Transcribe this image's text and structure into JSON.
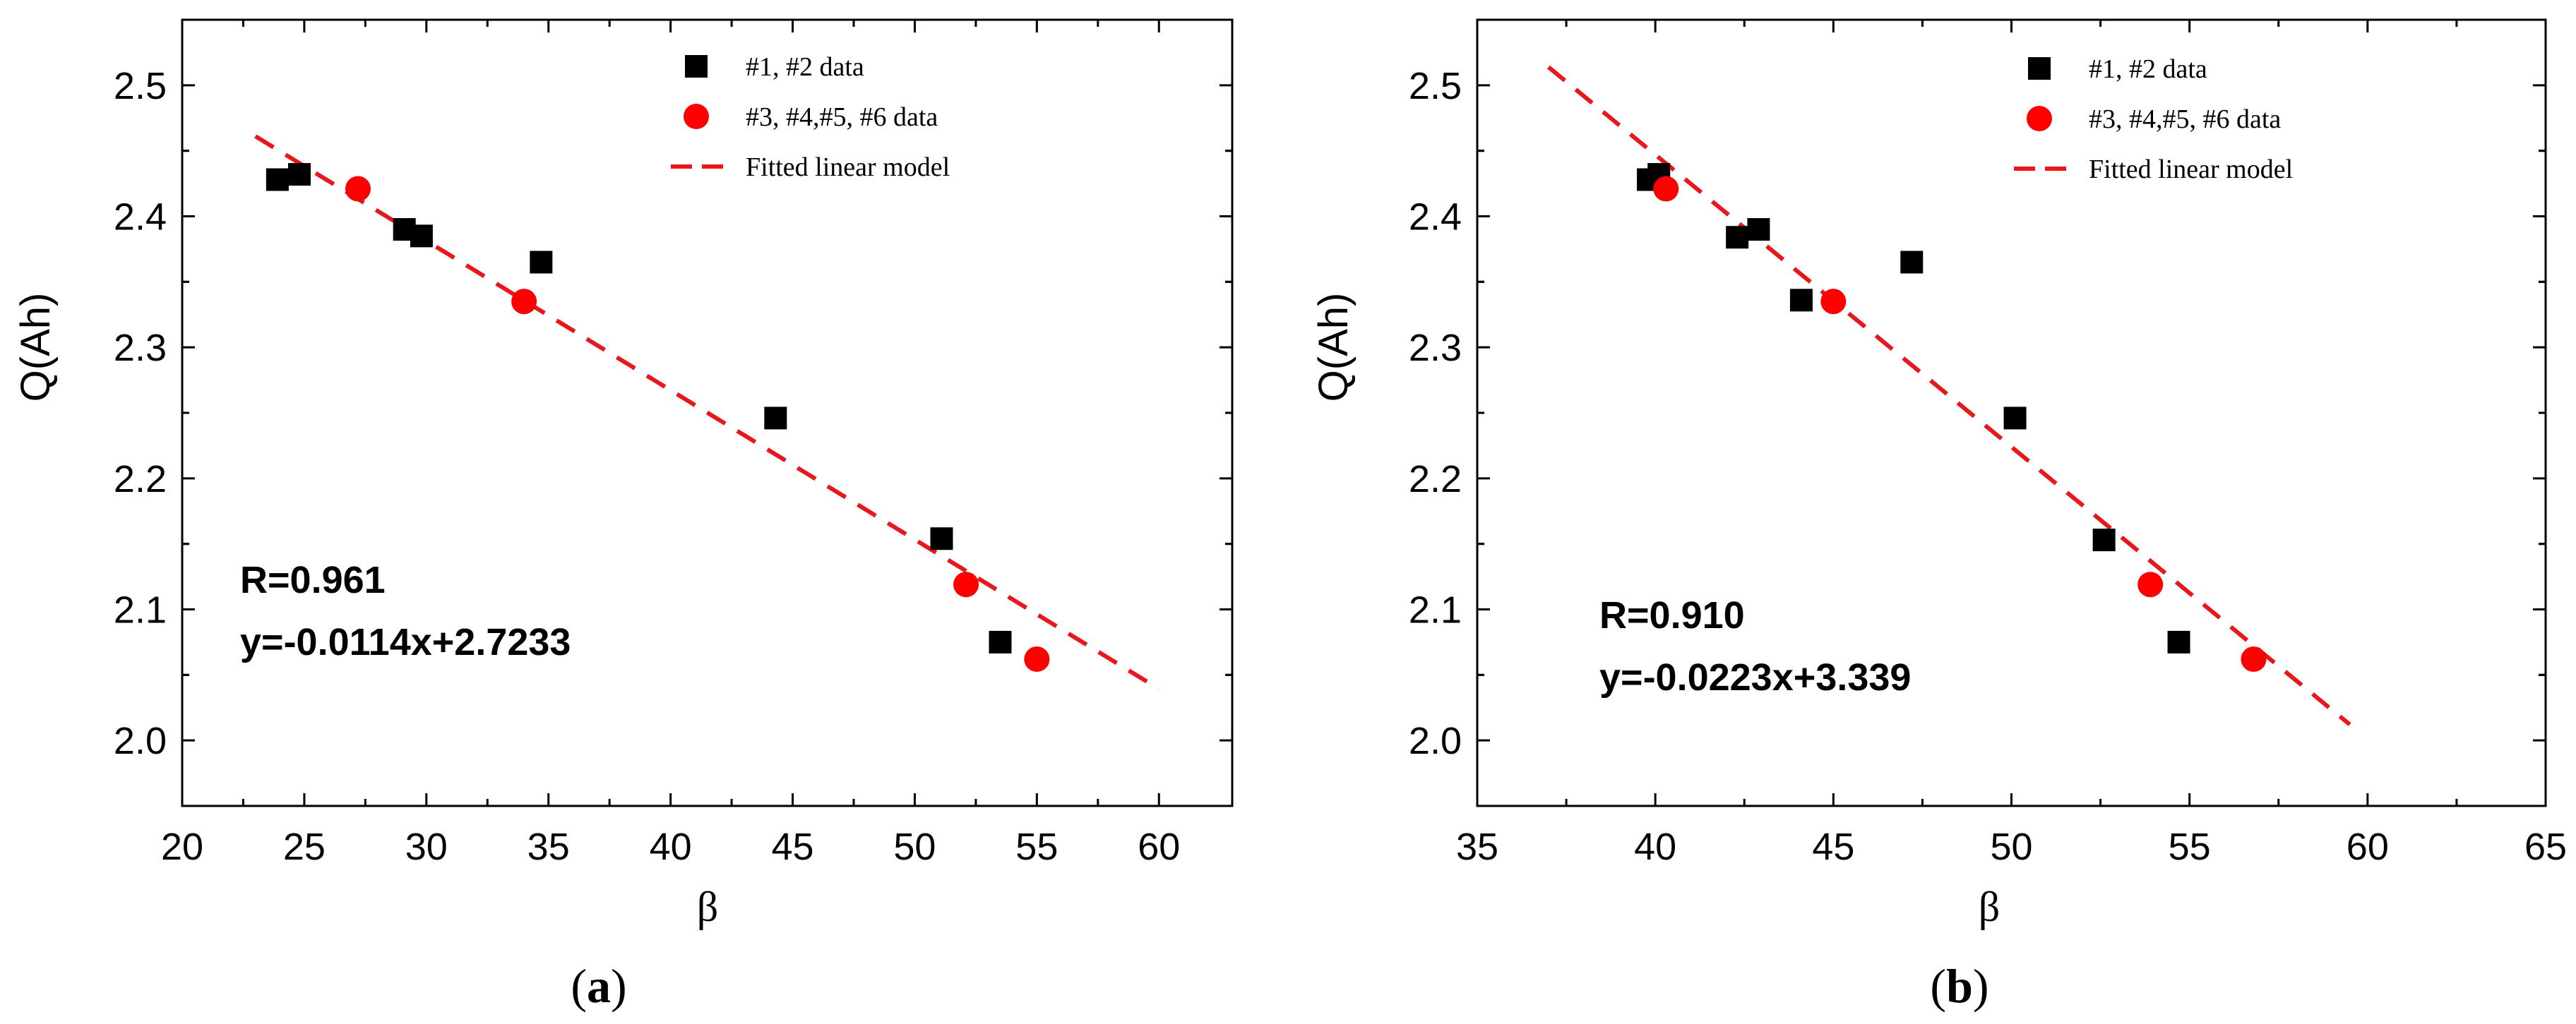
{
  "figure": {
    "panel_labels": [
      {
        "prefix": "(",
        "letter": "a",
        "suffix": ")"
      },
      {
        "prefix": "(",
        "letter": "b",
        "suffix": ")"
      }
    ]
  },
  "colors": {
    "series_square": "#000000",
    "series_circle": "#ff0000",
    "fit_line": "#e8171b",
    "axis": "#000000",
    "background": "#ffffff"
  },
  "chart_data": [
    {
      "type": "scatter",
      "panel": "a",
      "title": "",
      "xlabel": "β",
      "ylabel": "Q(Ah)",
      "xlim": [
        20,
        63
      ],
      "ylim": [
        1.95,
        2.55
      ],
      "xticks": [
        20,
        25,
        30,
        35,
        40,
        45,
        50,
        55,
        60
      ],
      "xtick_labels": [
        "20",
        "25",
        "30",
        "35",
        "40",
        "45",
        "50",
        "55",
        "60"
      ],
      "yticks": [
        2.0,
        2.1,
        2.2,
        2.3,
        2.4,
        2.5
      ],
      "ytick_labels": [
        "2.0",
        "2.1",
        "2.2",
        "2.3",
        "2.4",
        "2.5"
      ],
      "grid": false,
      "legend_position": "top-right",
      "series": [
        {
          "name": "#1, #2 data",
          "marker": "square",
          "color": "#000000",
          "points": [
            [
              23.9,
              2.428
            ],
            [
              24.8,
              2.432
            ],
            [
              29.1,
              2.39
            ],
            [
              29.8,
              2.385
            ],
            [
              34.7,
              2.365
            ],
            [
              44.3,
              2.246
            ],
            [
              51.1,
              2.154
            ],
            [
              53.5,
              2.075
            ]
          ]
        },
        {
          "name": "#3, #4,#5, #6 data",
          "marker": "circle",
          "color": "#ff0000",
          "points": [
            [
              27.2,
              2.421
            ],
            [
              34.0,
              2.335
            ],
            [
              52.1,
              2.119
            ],
            [
              55.0,
              2.062
            ]
          ]
        },
        {
          "name": "Fitted linear model",
          "style": "dashed-line",
          "color": "#e8171b",
          "slope": -0.0114,
          "intercept": 2.7233,
          "x_range": [
            23,
            60
          ]
        }
      ],
      "annotations": [
        "R=0.961",
        "y=-0.0114x+2.7233"
      ]
    },
    {
      "type": "scatter",
      "panel": "b",
      "title": "",
      "xlabel": "β",
      "ylabel": "Q(Ah)",
      "xlim": [
        35,
        65
      ],
      "ylim": [
        1.95,
        2.55
      ],
      "xticks": [
        35,
        40,
        45,
        50,
        55,
        60,
        65
      ],
      "xtick_labels": [
        "35",
        "40",
        "45",
        "50",
        "55",
        "60",
        "65"
      ],
      "yticks": [
        2.0,
        2.1,
        2.2,
        2.3,
        2.4,
        2.5
      ],
      "ytick_labels": [
        "2.0",
        "2.1",
        "2.2",
        "2.3",
        "2.4",
        "2.5"
      ],
      "grid": false,
      "legend_position": "top-right",
      "series": [
        {
          "name": "#1, #2 data",
          "marker": "square",
          "color": "#000000",
          "points": [
            [
              39.8,
              2.428
            ],
            [
              40.1,
              2.432
            ],
            [
              42.3,
              2.384
            ],
            [
              42.9,
              2.39
            ],
            [
              44.1,
              2.336
            ],
            [
              47.2,
              2.365
            ],
            [
              50.1,
              2.246
            ],
            [
              52.6,
              2.153
            ],
            [
              54.7,
              2.075
            ]
          ]
        },
        {
          "name": "#3, #4,#5, #6 data",
          "marker": "circle",
          "color": "#ff0000",
          "points": [
            [
              40.3,
              2.421
            ],
            [
              45.0,
              2.335
            ],
            [
              53.9,
              2.119
            ],
            [
              56.8,
              2.062
            ]
          ]
        },
        {
          "name": "Fitted linear model",
          "style": "dashed-line",
          "color": "#e8171b",
          "slope": -0.0223,
          "intercept": 3.339,
          "x_range": [
            37,
            59.5
          ]
        }
      ],
      "annotations": [
        "R=0.910",
        "y=-0.0223x+3.339"
      ]
    }
  ]
}
